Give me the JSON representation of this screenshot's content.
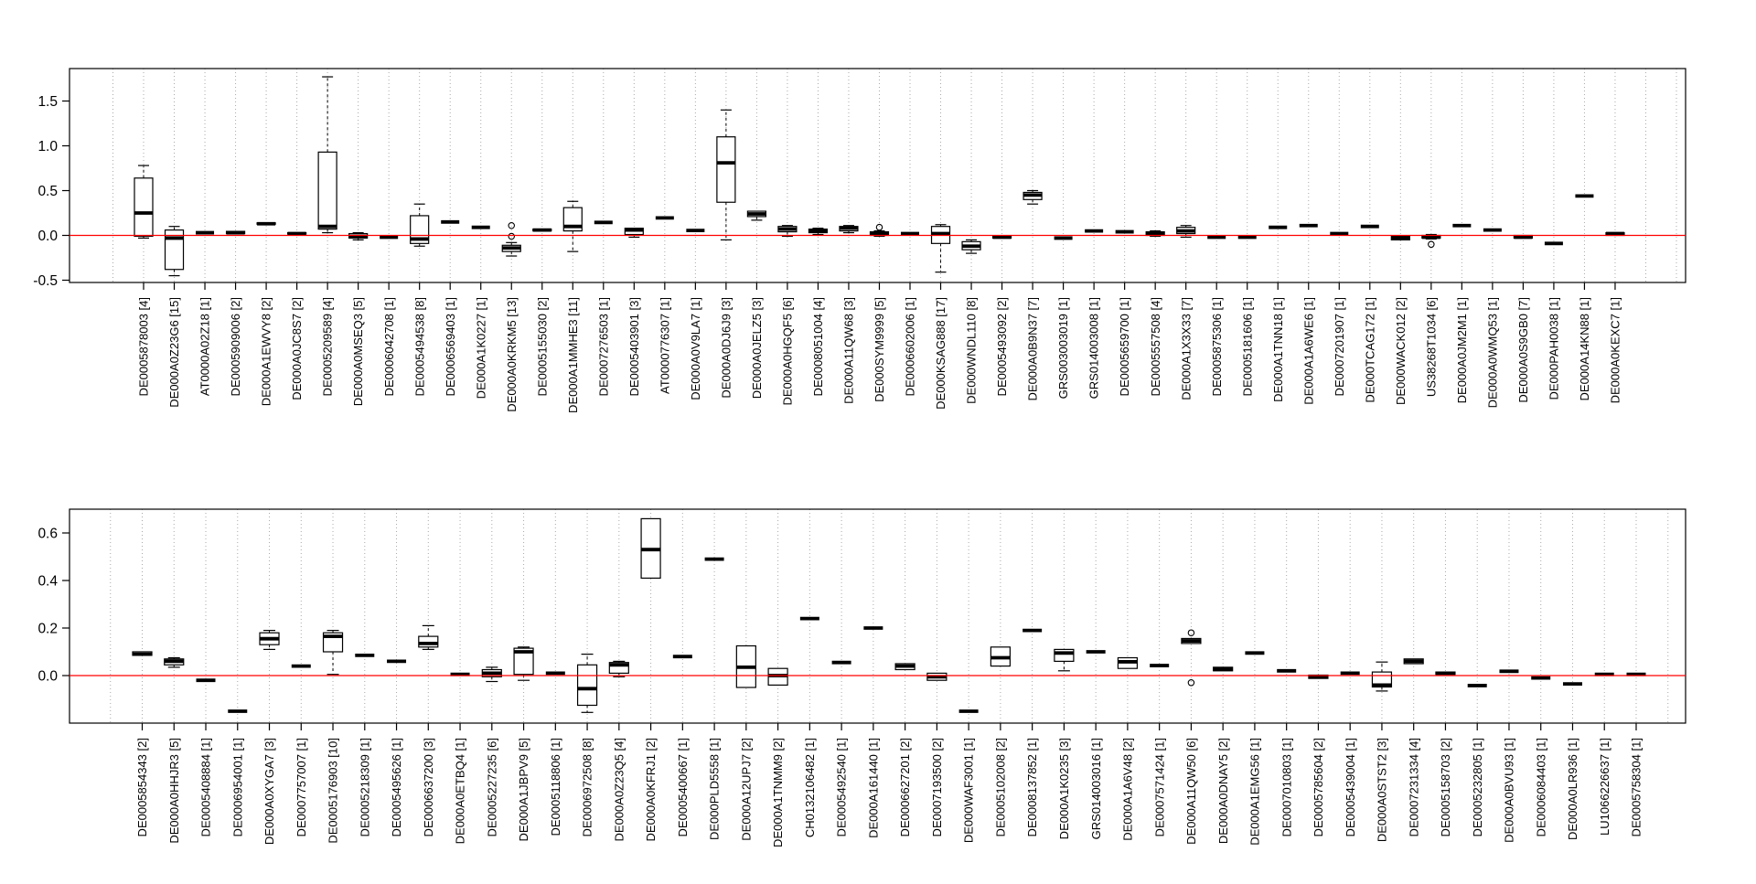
{
  "figure": {
    "background": "#ffffff",
    "description": "Two stacked boxplot panels"
  },
  "chart_data": [
    {
      "type": "boxplot",
      "title": "",
      "xlabel": "",
      "ylabel": "",
      "ylim": [
        -0.52,
        1.86
      ],
      "grid": "dotted-vertical",
      "legend": "none",
      "zero_line": {
        "value": 0.0,
        "color": "#ff0000"
      },
      "yticks": [
        {
          "label": "1.5",
          "value": 1.5
        },
        {
          "label": "1.0",
          "value": 1.0
        },
        {
          "label": "0.5",
          "value": 0.5
        },
        {
          "label": "0.0",
          "value": 0.0
        },
        {
          "label": "-0.5",
          "value": -0.5
        }
      ],
      "boxes": [
        {
          "label": "DE0005878003 [4]",
          "lo": -0.03,
          "q1": -0.01,
          "med": 0.25,
          "q3": 0.64,
          "hi": 0.78
        },
        {
          "label": "DE000A0Z23G6 [15]",
          "lo": -0.45,
          "q1": -0.38,
          "med": -0.03,
          "q3": 0.06,
          "hi": 0.1
        },
        {
          "label": "AT0000A02Z18 [1]",
          "med": 0.03
        },
        {
          "label": "DE0005909006 [2]",
          "q1": 0.02,
          "med": 0.03,
          "q3": 0.045
        },
        {
          "label": "DE000A1EWVY8 [2]",
          "q1": 0.125,
          "med": 0.13,
          "q3": 0.14
        },
        {
          "label": "DE000A0JC8S7 [2]",
          "q1": 0.015,
          "med": 0.02,
          "q3": 0.03
        },
        {
          "label": "DE0005209589 [4]",
          "lo": 0.03,
          "q1": 0.07,
          "med": 0.1,
          "q3": 0.93,
          "hi": 1.77
        },
        {
          "label": "DE000A0MSEQ3 [5]",
          "lo": -0.05,
          "q1": -0.03,
          "med": -0.01,
          "q3": 0.02,
          "hi": 0.03
        },
        {
          "label": "DE0006042708 [1]",
          "med": -0.02
        },
        {
          "label": "DE0005494538 [8]",
          "lo": -0.12,
          "q1": -0.09,
          "med": -0.04,
          "q3": 0.22,
          "hi": 0.35
        },
        {
          "label": "DE0006569403 [1]",
          "med": 0.15
        },
        {
          "label": "DE000A1K0227 [1]",
          "med": 0.09
        },
        {
          "label": "DE000A0KRKM5 [13]",
          "lo": -0.23,
          "q1": -0.18,
          "med": -0.14,
          "q3": -0.11,
          "hi": -0.08,
          "out": [
            0.11,
            -0.01
          ]
        },
        {
          "label": "DE0005155030 [2]",
          "q1": 0.05,
          "med": 0.06,
          "q3": 0.07
        },
        {
          "label": "DE000A1MMHE3 [11]",
          "lo": -0.18,
          "q1": 0.05,
          "med": 0.1,
          "q3": 0.31,
          "hi": 0.38
        },
        {
          "label": "DE0007276503 [1]",
          "med": 0.145
        },
        {
          "label": "DE0005403901 [3]",
          "lo": -0.02,
          "q1": 0.01,
          "med": 0.06,
          "q3": 0.08
        },
        {
          "label": "AT0000776307 [1]",
          "med": 0.195
        },
        {
          "label": "DE000A0V9LA7 [1]",
          "med": 0.055
        },
        {
          "label": "DE000A0DJ6J9 [3]",
          "lo": -0.05,
          "q1": 0.37,
          "med": 0.81,
          "q3": 1.1,
          "hi": 1.4
        },
        {
          "label": "DE000A0JELZ5 [3]",
          "lo": 0.17,
          "q1": 0.21,
          "med": 0.24,
          "q3": 0.27
        },
        {
          "label": "DE000A0HGQF5 [6]",
          "lo": -0.01,
          "q1": 0.04,
          "med": 0.07,
          "q3": 0.1,
          "hi": 0.11
        },
        {
          "label": "DE0008051004 [4]",
          "lo": 0.01,
          "q1": 0.03,
          "med": 0.05,
          "q3": 0.07,
          "hi": 0.08
        },
        {
          "label": "DE000A11QW68 [3]",
          "lo": 0.03,
          "q1": 0.05,
          "med": 0.08,
          "q3": 0.1,
          "hi": 0.11
        },
        {
          "label": "DE000SYM9999 [5]",
          "lo": -0.01,
          "q1": 0.0,
          "med": 0.02,
          "q3": 0.04,
          "hi": 0.05,
          "out": [
            0.09
          ]
        },
        {
          "label": "DE0006602006 [1]",
          "med": 0.02
        },
        {
          "label": "DE000KSAG888 [17]",
          "lo": -0.41,
          "q1": -0.09,
          "med": 0.02,
          "q3": 0.1,
          "hi": 0.12
        },
        {
          "label": "DE000WNDL110 [8]",
          "lo": -0.2,
          "q1": -0.16,
          "med": -0.12,
          "q3": -0.07,
          "hi": -0.05
        },
        {
          "label": "DE0005493092 [2]",
          "q1": -0.03,
          "med": -0.02,
          "q3": -0.01
        },
        {
          "label": "DE000A0B9N37 [7]",
          "lo": 0.35,
          "q1": 0.4,
          "med": 0.45,
          "q3": 0.48,
          "hi": 0.5
        },
        {
          "label": "GRS003003019 [1]",
          "med": -0.03
        },
        {
          "label": "GRS014003008 [1]",
          "med": 0.05
        },
        {
          "label": "DE0005659700 [1]",
          "med": 0.04
        },
        {
          "label": "DE0005557508 [4]",
          "lo": -0.01,
          "q1": 0.0,
          "med": 0.02,
          "q3": 0.04,
          "hi": 0.05
        },
        {
          "label": "DE000A1X3X33 [7]",
          "lo": -0.02,
          "q1": 0.02,
          "med": 0.05,
          "q3": 0.09,
          "hi": 0.11
        },
        {
          "label": "DE0005875306 [1]",
          "med": -0.02
        },
        {
          "label": "DE0005181606 [1]",
          "med": -0.02
        },
        {
          "label": "DE000A1TNN18 [1]",
          "med": 0.09
        },
        {
          "label": "DE000A1A6WE6 [1]",
          "med": 0.11
        },
        {
          "label": "DE0007201907 [1]",
          "med": 0.02
        },
        {
          "label": "DE000TCAG172 [1]",
          "med": 0.1
        },
        {
          "label": "DE000WACK012 [2]",
          "q1": -0.05,
          "med": -0.03,
          "q3": -0.01
        },
        {
          "label": "US38268T1034 [6]",
          "lo": -0.04,
          "q1": -0.03,
          "med": -0.02,
          "q3": 0.0,
          "hi": 0.01,
          "out": [
            -0.1
          ]
        },
        {
          "label": "DE000A0JM2M1 [1]",
          "med": 0.11
        },
        {
          "label": "DE000A0WMQ53 [1]",
          "med": 0.06
        },
        {
          "label": "DE000A0S9GB0 [7]",
          "q1": -0.03,
          "med": -0.02,
          "q3": 0.0
        },
        {
          "label": "DE000PAH0038 [1]",
          "med": -0.09
        },
        {
          "label": "DE000A14KN88 [1]",
          "med": 0.44
        },
        {
          "label": "DE000A0KEXC7 [1]",
          "q1": 0.0,
          "med": 0.02,
          "q3": 0.03
        }
      ]
    },
    {
      "type": "boxplot",
      "title": "",
      "xlabel": "",
      "ylabel": "",
      "ylim": [
        -0.2,
        0.7
      ],
      "grid": "dotted-vertical",
      "legend": "none",
      "zero_line": {
        "value": 0.0,
        "color": "#ff0000"
      },
      "yticks": [
        {
          "label": "0.6",
          "value": 0.6
        },
        {
          "label": "0.4",
          "value": 0.4
        },
        {
          "label": "0.2",
          "value": 0.2
        },
        {
          "label": "0.0",
          "value": 0.0
        }
      ],
      "boxes": [
        {
          "label": "DE0005854343 [2]",
          "q1": 0.085,
          "med": 0.09,
          "q3": 0.1
        },
        {
          "label": "DE000A0HHJR3 [5]",
          "lo": 0.035,
          "q1": 0.045,
          "med": 0.06,
          "q3": 0.07,
          "hi": 0.075
        },
        {
          "label": "DE0005408884 [1]",
          "med": -0.02
        },
        {
          "label": "DE0006954001 [1]",
          "med": -0.15
        },
        {
          "label": "DE000A0XYGA7 [3]",
          "lo": 0.11,
          "q1": 0.13,
          "med": 0.155,
          "q3": 0.18,
          "hi": 0.19
        },
        {
          "label": "DE0007757007 [1]",
          "med": 0.04
        },
        {
          "label": "DE0005176903 [10]",
          "lo": 0.005,
          "q1": 0.1,
          "med": 0.165,
          "q3": 0.18,
          "hi": 0.19
        },
        {
          "label": "DE0005218309 [1]",
          "med": 0.085
        },
        {
          "label": "DE0005495626 [1]",
          "med": 0.06
        },
        {
          "label": "DE0006637200 [3]",
          "lo": 0.11,
          "q1": 0.12,
          "med": 0.135,
          "q3": 0.165,
          "hi": 0.21
        },
        {
          "label": "DE000A0ETBQ4 [1]",
          "med": 0.005
        },
        {
          "label": "DE0005227235 [6]",
          "lo": -0.025,
          "q1": -0.005,
          "med": 0.01,
          "q3": 0.025,
          "hi": 0.035
        },
        {
          "label": "DE000A1JBPV9 [5]",
          "lo": -0.02,
          "q1": 0.005,
          "med": 0.1,
          "q3": 0.115,
          "hi": 0.12
        },
        {
          "label": "DE0005118806 [1]",
          "med": 0.01
        },
        {
          "label": "DE0006972508 [8]",
          "lo": -0.155,
          "q1": -0.125,
          "med": -0.055,
          "q3": 0.045,
          "hi": 0.09
        },
        {
          "label": "DE000A0Z23Q5 [4]",
          "lo": -0.005,
          "q1": 0.01,
          "med": 0.045,
          "q3": 0.055,
          "hi": 0.06
        },
        {
          "label": "DE000A0KFRJ1 [2]",
          "q1": 0.41,
          "med": 0.53,
          "q3": 0.66
        },
        {
          "label": "DE0005400667 [1]",
          "med": 0.08
        },
        {
          "label": "DE000PLD5558 [1]",
          "med": 0.49
        },
        {
          "label": "DE000A12UPJ7 [2]",
          "q1": -0.05,
          "med": 0.035,
          "q3": 0.125
        },
        {
          "label": "DE000A1TNMM9 [2]",
          "q1": -0.04,
          "med": 0.0,
          "q3": 0.03
        },
        {
          "label": "CH0132106482 [1]",
          "med": 0.24
        },
        {
          "label": "DE0005492540 [1]",
          "med": 0.055
        },
        {
          "label": "DE000A161440 [1]",
          "med": 0.2
        },
        {
          "label": "DE0006627201 [2]",
          "q1": 0.025,
          "med": 0.04,
          "q3": 0.05
        },
        {
          "label": "DE0007193500 [2]",
          "q1": -0.02,
          "med": -0.005,
          "q3": 0.01
        },
        {
          "label": "DE000WAF3001 [1]",
          "med": -0.15
        },
        {
          "label": "DE0005102008 [2]",
          "q1": 0.04,
          "med": 0.075,
          "q3": 0.12
        },
        {
          "label": "DE0008137852 [1]",
          "med": 0.19
        },
        {
          "label": "DE000A1K0235 [3]",
          "lo": 0.02,
          "q1": 0.06,
          "med": 0.095,
          "q3": 0.11
        },
        {
          "label": "GRS014003016 [1]",
          "med": 0.1
        },
        {
          "label": "DE000A1A6V48 [2]",
          "q1": 0.03,
          "med": 0.058,
          "q3": 0.075
        },
        {
          "label": "DE0007571424 [1]",
          "med": 0.042
        },
        {
          "label": "DE000A11QW50 [6]",
          "q1": 0.135,
          "med": 0.146,
          "q3": 0.156,
          "out": [
            0.18,
            -0.03
          ]
        },
        {
          "label": "DE000A0DNAY5 [2]",
          "q1": 0.02,
          "med": 0.026,
          "q3": 0.035
        },
        {
          "label": "DE000A1EMG56 [1]",
          "med": 0.095
        },
        {
          "label": "DE0007010803 [1]",
          "med": 0.02
        },
        {
          "label": "DE0005785604 [2]",
          "q1": -0.012,
          "med": -0.006,
          "q3": 0.002
        },
        {
          "label": "DE0005439004 [1]",
          "med": 0.01
        },
        {
          "label": "DE000A0STST2 [3]",
          "lo": -0.065,
          "q1": -0.048,
          "med": -0.04,
          "q3": 0.015,
          "hi": 0.057
        },
        {
          "label": "DE0007231334 [4]",
          "q1": 0.05,
          "med": 0.06,
          "q3": 0.07
        },
        {
          "label": "DE0005158703 [2]",
          "q1": 0.005,
          "med": 0.01,
          "q3": 0.015
        },
        {
          "label": "DE0005232805 [1]",
          "med": -0.042
        },
        {
          "label": "DE000A0BVU93 [1]",
          "med": 0.018
        },
        {
          "label": "DE0006084403 [1]",
          "med": -0.01
        },
        {
          "label": "DE000A0LR936 [1]",
          "med": -0.035
        },
        {
          "label": "LU1066226637 [1]",
          "med": 0.005
        },
        {
          "label": "DE0005758304 [1]",
          "med": 0.005
        }
      ]
    }
  ],
  "style": {
    "gridline_color": "#a9a9a9",
    "axis_color": "#000000",
    "box_fill": "#ffffff",
    "zero_line_color": "#ff0000"
  }
}
